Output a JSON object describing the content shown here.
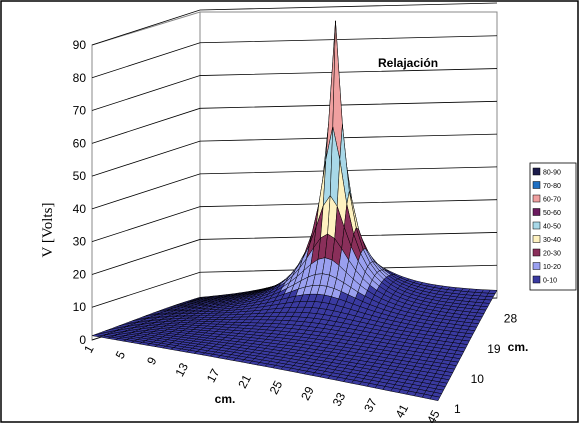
{
  "chart_data": {
    "type": "surface3d",
    "title": "Relajación",
    "ylabel": "V [Volts]",
    "xlabel": "cm.",
    "zlabel": "cm.",
    "ylim": [
      0,
      90
    ],
    "y_ticks": [
      "0",
      "10",
      "20",
      "30",
      "40",
      "50",
      "60",
      "70",
      "80",
      "90"
    ],
    "x_ticks": [
      "1",
      "5",
      "9",
      "13",
      "17",
      "21",
      "25",
      "29",
      "33",
      "37",
      "41",
      "45"
    ],
    "z_ticks": [
      "1",
      "10",
      "19",
      "28"
    ],
    "grid_x": 45,
    "grid_z": 33,
    "peak": {
      "x": 23,
      "z": 28,
      "value": 89
    },
    "legend": [
      {
        "label": "80-90",
        "color": "#1a1a4a"
      },
      {
        "label": "70-80",
        "color": "#1e6fc2"
      },
      {
        "label": "60-70",
        "color": "#f0a0a0"
      },
      {
        "label": "50-60",
        "color": "#6b1a5e"
      },
      {
        "label": "40-50",
        "color": "#a8d8e8"
      },
      {
        "label": "30-40",
        "color": "#fff2c0"
      },
      {
        "label": "20-30",
        "color": "#8a2f5a"
      },
      {
        "label": "10-20",
        "color": "#9aa0f0"
      },
      {
        "label": "0-10",
        "color": "#3a3aa0"
      }
    ]
  }
}
